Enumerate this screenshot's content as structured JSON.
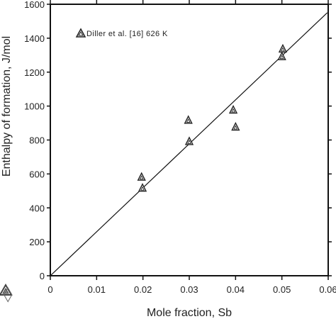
{
  "chart_data": {
    "type": "scatter",
    "xlabel": "Mole fraction, Sb",
    "ylabel": "Enthalpy of formation, J/mol",
    "xlim": [
      0,
      0.06
    ],
    "ylim": [
      0,
      1600
    ],
    "x_ticks": [
      "0",
      "0.01",
      "0.02",
      "0.03",
      "0.04",
      "0.05",
      "0.06"
    ],
    "y_ticks": [
      "0",
      "200",
      "400",
      "600",
      "800",
      "1000",
      "1200",
      "1400",
      "1600"
    ],
    "grid": false,
    "legend_position": "top-left",
    "series": [
      {
        "name": "Diller et al. [16] 626 K",
        "marker": "triangle-open",
        "points": [
          {
            "x": 0.0197,
            "y": 580
          },
          {
            "x": 0.0199,
            "y": 515
          },
          {
            "x": 0.0298,
            "y": 915
          },
          {
            "x": 0.03,
            "y": 790
          },
          {
            "x": 0.0395,
            "y": 975
          },
          {
            "x": 0.04,
            "y": 875
          },
          {
            "x": 0.05,
            "y": 1290
          },
          {
            "x": 0.0502,
            "y": 1335
          }
        ]
      }
    ],
    "fit_line": {
      "style": "solid",
      "points": [
        {
          "x": 0,
          "y": 0
        },
        {
          "x": 0.0598,
          "y": 1550
        }
      ]
    }
  },
  "colors": {
    "axis": "#111111",
    "marker": "#222222",
    "line": "#111111"
  },
  "logo_icon": "thermo-calc-triangle-logo"
}
